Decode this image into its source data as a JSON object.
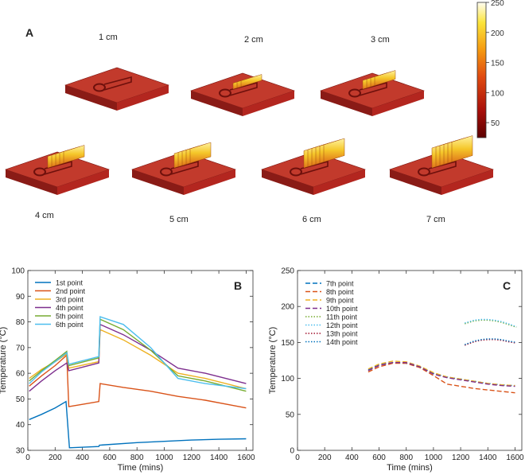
{
  "panel_a": {
    "label": "A",
    "models": [
      {
        "label": "1 cm",
        "ribs": 0
      },
      {
        "label": "2 cm",
        "ribs": 3
      },
      {
        "label": "3 cm",
        "ribs": 4
      },
      {
        "label": "4 cm",
        "ribs": 5
      },
      {
        "label": "5 cm",
        "ribs": 5
      },
      {
        "label": "6 cm",
        "ribs": 6
      },
      {
        "label": "7 cm",
        "ribs": 6
      }
    ],
    "colorbar": {
      "ticks": [
        "250",
        "200",
        "150",
        "100",
        "50"
      ],
      "range": [
        25,
        250
      ]
    }
  },
  "colors": {
    "s1": "#0072BD",
    "s2": "#D95319",
    "s3": "#EDB120",
    "s4": "#7E2F8E",
    "s5": "#77AC30",
    "s6": "#4DBEEE",
    "s7": "#A2142F",
    "plate": "#b3261f",
    "plate_top": "#c23a2c",
    "plate_side": "#8a1b16"
  },
  "chart_data": [
    {
      "panel": "B",
      "type": "line",
      "xlabel": "Time (mins)",
      "ylabel": "Temperature (°C)",
      "xlim": [
        0,
        1650
      ],
      "ylim": [
        30,
        100
      ],
      "xticks": [
        "0",
        "200",
        "400",
        "600",
        "800",
        "1000",
        "1200",
        "1400",
        "1600"
      ],
      "yticks": [
        "30",
        "40",
        "50",
        "60",
        "70",
        "80",
        "90",
        "100"
      ],
      "legend_position": "top-left",
      "series": [
        {
          "name": "1st point",
          "color_key": "s1",
          "style": "solid",
          "x": [
            10,
            100,
            200,
            280,
            305,
            520,
            525,
            800,
            1000,
            1200,
            1400,
            1600
          ],
          "y": [
            42,
            44,
            46.5,
            49,
            31,
            31.5,
            32,
            33,
            33.5,
            34,
            34.3,
            34.5
          ]
        },
        {
          "name": "2nd point",
          "color_key": "s2",
          "style": "solid",
          "x": [
            10,
            100,
            200,
            285,
            300,
            520,
            530,
            700,
            900,
            1100,
            1300,
            1600
          ],
          "y": [
            55,
            59,
            63,
            67,
            47,
            49,
            56,
            54.5,
            53,
            51,
            49.5,
            46.5
          ]
        },
        {
          "name": "3rd point",
          "color_key": "s3",
          "style": "solid",
          "x": [
            10,
            100,
            200,
            285,
            300,
            520,
            530,
            700,
            900,
            1100,
            1300,
            1600
          ],
          "y": [
            58,
            61.5,
            64.5,
            67.5,
            62,
            64.5,
            77,
            73,
            67,
            60,
            58,
            54
          ]
        },
        {
          "name": "4th point",
          "color_key": "s4",
          "style": "solid",
          "x": [
            10,
            100,
            200,
            285,
            300,
            520,
            530,
            700,
            900,
            1100,
            1300,
            1600
          ],
          "y": [
            53,
            57,
            61,
            64,
            61,
            64,
            79,
            75,
            69,
            62,
            60,
            56
          ]
        },
        {
          "name": "5th point",
          "color_key": "s5",
          "style": "solid",
          "x": [
            10,
            100,
            200,
            285,
            300,
            520,
            530,
            700,
            900,
            1100,
            1300,
            1600
          ],
          "y": [
            57,
            61,
            65,
            68.5,
            63,
            66,
            81,
            77,
            69,
            59,
            57,
            53
          ]
        },
        {
          "name": "6th point",
          "color_key": "s6",
          "style": "solid",
          "x": [
            10,
            100,
            200,
            285,
            300,
            520,
            530,
            700,
            900,
            1100,
            1300,
            1600
          ],
          "y": [
            56,
            60.5,
            64.5,
            68,
            63.5,
            66.5,
            82,
            79,
            70,
            58,
            56,
            54
          ]
        }
      ]
    },
    {
      "panel": "C",
      "type": "line",
      "xlabel": "Time (mins)",
      "ylabel": "Temperature (°C)",
      "xlim": [
        0,
        1650
      ],
      "ylim": [
        0,
        250
      ],
      "xticks": [
        "0",
        "200",
        "400",
        "600",
        "800",
        "1000",
        "1200",
        "1400",
        "1600"
      ],
      "yticks": [
        "0",
        "50",
        "100",
        "150",
        "200",
        "250"
      ],
      "legend_position": "top-left",
      "series": [
        {
          "name": "7th point",
          "color_key": "s1",
          "style": "dashed",
          "x": [
            520,
            600,
            700,
            800,
            900,
            1000,
            1100,
            1200,
            1300,
            1400,
            1500,
            1600
          ],
          "y": [
            112,
            119,
            122,
            121,
            116,
            107,
            102,
            99,
            96,
            93,
            91,
            90
          ]
        },
        {
          "name": "8th point",
          "color_key": "s2",
          "style": "dashed",
          "x": [
            520,
            600,
            700,
            800,
            900,
            1000,
            1100,
            1200,
            1300,
            1400,
            1500,
            1600
          ],
          "y": [
            109,
            116,
            121,
            121,
            115,
            104,
            92,
            89,
            86,
            84,
            82,
            80
          ]
        },
        {
          "name": "9th point",
          "color_key": "s3",
          "style": "dashed",
          "x": [
            520,
            600,
            700,
            800,
            900,
            1000,
            1100,
            1200,
            1300,
            1400,
            1500,
            1600
          ],
          "y": [
            113,
            120,
            124,
            123,
            117,
            108,
            102,
            99,
            96,
            93,
            91,
            90
          ]
        },
        {
          "name": "10th point",
          "color_key": "s4",
          "style": "dashed",
          "x": [
            520,
            600,
            700,
            800,
            900,
            1000,
            1100,
            1200,
            1300,
            1400,
            1500,
            1600
          ],
          "y": [
            111,
            118,
            122,
            122,
            116,
            106,
            101,
            98,
            95,
            92,
            90,
            89
          ]
        },
        {
          "name": "11th point",
          "color_key": "s5",
          "style": "dotted",
          "x": [
            1230,
            1300,
            1350,
            1400,
            1450,
            1500,
            1550,
            1610
          ],
          "y": [
            176,
            180,
            181,
            181,
            180,
            178,
            175,
            171
          ]
        },
        {
          "name": "12th point",
          "color_key": "s6",
          "style": "dotted",
          "x": [
            1230,
            1300,
            1350,
            1400,
            1450,
            1500,
            1550,
            1610
          ],
          "y": [
            177,
            181,
            182,
            182,
            181,
            179,
            176,
            172
          ]
        },
        {
          "name": "13th point",
          "color_key": "s7",
          "style": "dotted",
          "x": [
            1230,
            1300,
            1350,
            1400,
            1450,
            1500,
            1550,
            1610
          ],
          "y": [
            146,
            151,
            153,
            154,
            154,
            153,
            151,
            149
          ]
        },
        {
          "name": "14th point",
          "color_key": "s1",
          "style": "dotted",
          "x": [
            1230,
            1300,
            1350,
            1400,
            1450,
            1500,
            1550,
            1610
          ],
          "y": [
            147,
            152,
            154,
            155,
            155,
            154,
            152,
            150
          ]
        }
      ]
    }
  ]
}
